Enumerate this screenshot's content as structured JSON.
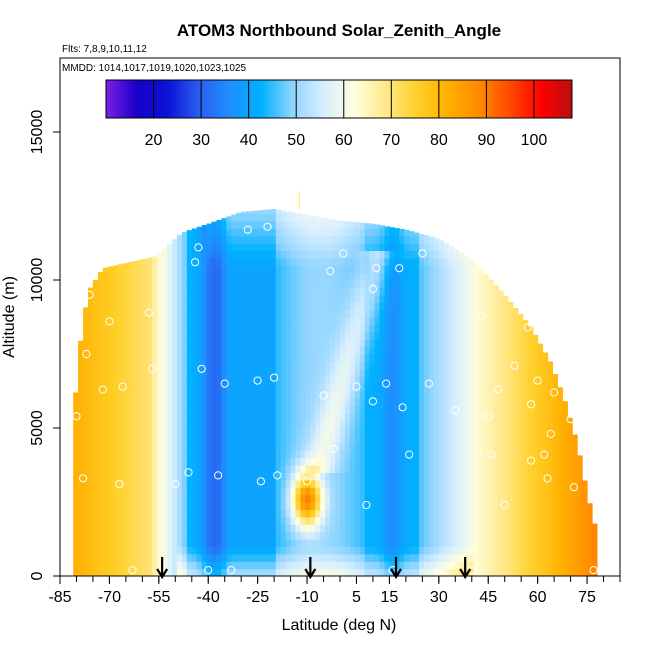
{
  "chart_data": {
    "type": "heatmap",
    "title": "ATOM3 Northbound Solar_Zenith_Angle",
    "subtitle_flights": "Flts: 7,8,9,10,11,12",
    "subtitle_dates": "MMDD: 1014,1017,1019,1020,1023,1025",
    "xlabel": "Latitude (deg N)",
    "ylabel": "Altitude (m)",
    "xlim": [
      -85,
      85
    ],
    "ylim": [
      0,
      17500
    ],
    "x_tick_labels": [
      "-85",
      "-70",
      "-55",
      "-40",
      "-25",
      "-10",
      "5",
      "15",
      "30",
      "45",
      "60",
      "75"
    ],
    "x_tick_values": [
      -85,
      -70,
      -55,
      -40,
      -25,
      -10,
      5,
      15,
      30,
      45,
      60,
      75
    ],
    "y_tick_labels": [
      "0",
      "5000",
      "10000",
      "15000"
    ],
    "y_tick_values": [
      0,
      5000,
      10000,
      15000
    ],
    "colorbar": {
      "range": [
        10,
        108
      ],
      "tick_values": [
        20,
        30,
        40,
        50,
        60,
        70,
        80,
        90,
        100
      ],
      "tick_labels": [
        "20",
        "30",
        "40",
        "50",
        "60",
        "70",
        "80",
        "90",
        "100"
      ],
      "colors": [
        "#7d1ee6",
        "#1a00c8",
        "#0a14d6",
        "#2a5ef0",
        "#1e90ff",
        "#00b2ff",
        "#8fd4ff",
        "#d7eeff",
        "#ffffe0",
        "#ffe88a",
        "#ffd02a",
        "#ffb000",
        "#ff8a00",
        "#ff4a00",
        "#ff0000",
        "#b81010"
      ]
    },
    "arrow_latitudes": [
      -54,
      -9,
      17,
      38
    ],
    "sample_points": [
      [
        -80,
        5400
      ],
      [
        -78,
        3300
      ],
      [
        -77,
        7500
      ],
      [
        -76,
        9500
      ],
      [
        -72,
        6300
      ],
      [
        -70,
        8600
      ],
      [
        -67,
        3100
      ],
      [
        -66,
        6400
      ],
      [
        -63,
        200
      ],
      [
        -58,
        8900
      ],
      [
        -57,
        7000
      ],
      [
        -50,
        3100
      ],
      [
        -46,
        3500
      ],
      [
        -44,
        10600
      ],
      [
        -43,
        11100
      ],
      [
        -42,
        7000
      ],
      [
        -40,
        200
      ],
      [
        -37,
        3400
      ],
      [
        -35,
        6500
      ],
      [
        -33,
        200
      ],
      [
        -28,
        11700
      ],
      [
        -25,
        6600
      ],
      [
        -24,
        3200
      ],
      [
        -22,
        11800
      ],
      [
        -20,
        6700
      ],
      [
        -19,
        3400
      ],
      [
        -10,
        3200
      ],
      [
        -5,
        6100
      ],
      [
        -3,
        10300
      ],
      [
        -2,
        4300
      ],
      [
        1,
        10900
      ],
      [
        5,
        6400
      ],
      [
        8,
        2400
      ],
      [
        10,
        5900
      ],
      [
        10,
        9700
      ],
      [
        11,
        10400
      ],
      [
        14,
        6500
      ],
      [
        16,
        200
      ],
      [
        18,
        10400
      ],
      [
        19,
        5700
      ],
      [
        21,
        4100
      ],
      [
        25,
        10900
      ],
      [
        27,
        6500
      ],
      [
        30,
        200
      ],
      [
        33,
        11500
      ],
      [
        35,
        5600
      ],
      [
        40,
        200
      ],
      [
        43,
        8800
      ],
      [
        45,
        5400
      ],
      [
        46,
        4100
      ],
      [
        48,
        6300
      ],
      [
        50,
        2400
      ],
      [
        53,
        7100
      ],
      [
        57,
        8400
      ],
      [
        58,
        5800
      ],
      [
        58,
        3900
      ],
      [
        60,
        6600
      ],
      [
        62,
        4100
      ],
      [
        63,
        3300
      ],
      [
        64,
        4800
      ],
      [
        65,
        6200
      ],
      [
        68,
        8500
      ],
      [
        70,
        5300
      ],
      [
        71,
        3000
      ],
      [
        75,
        6400
      ],
      [
        77,
        200
      ]
    ]
  }
}
